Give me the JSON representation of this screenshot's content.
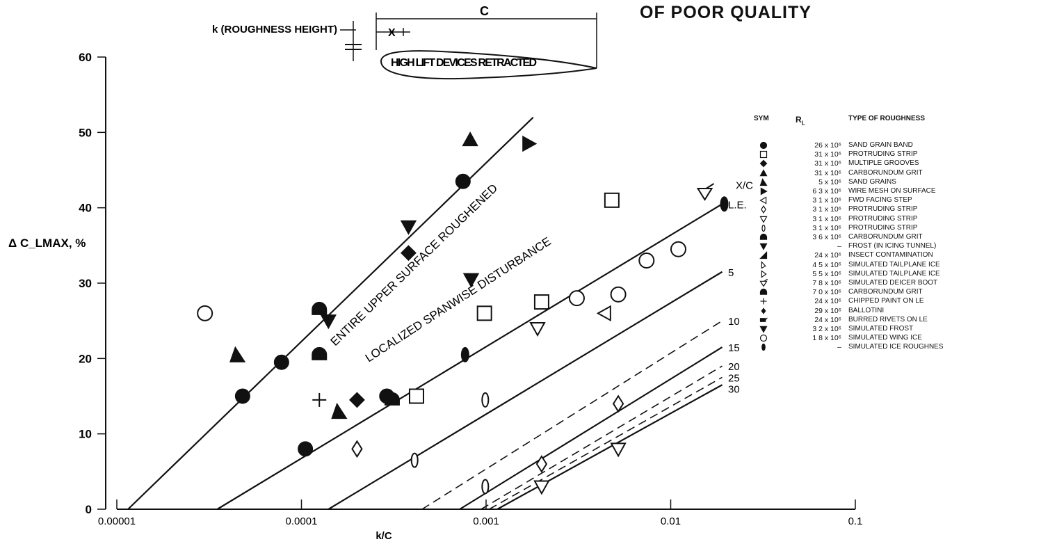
{
  "page_title": "OF POOR QUALITY",
  "diagram": {
    "roughness_label": "k (ROUGHNESS HEIGHT)",
    "chord_label": "C",
    "x_label": "X",
    "airfoil_label": "HIGH LIFT DEVICES RETRACTED"
  },
  "chart_data": {
    "type": "line",
    "title": "",
    "xlabel": "k/C",
    "ylabel": "Δ C_LMAX, %",
    "xscale": "log",
    "xlim": [
      1e-05,
      0.1
    ],
    "ylim": [
      0,
      60
    ],
    "x_ticks": [
      "0.00001",
      "0.0001",
      "0.001",
      "0.01",
      "0.1"
    ],
    "y_ticks": [
      "0",
      "10",
      "20",
      "30",
      "40",
      "50",
      "60"
    ],
    "grid": false,
    "region_labels": [
      "ENTIRE UPPER SURFACE ROUGHENED",
      "LOCALIZED SPANWISE DISTURBANCE"
    ],
    "line_labels_header": "X/C",
    "lines": [
      {
        "label": "",
        "style": "solid",
        "x": [
          1.15e-05,
          0.0018
        ],
        "y": [
          0,
          52
        ]
      },
      {
        "label": "L.E.",
        "style": "solid",
        "x": [
          3.5e-05,
          0.019
        ],
        "y": [
          0,
          40.5
        ]
      },
      {
        "label": "5",
        "style": "solid",
        "x": [
          0.00014,
          0.019
        ],
        "y": [
          0,
          31.5
        ]
      },
      {
        "label": "10",
        "style": "dashed",
        "x": [
          0.00045,
          0.019
        ],
        "y": [
          0,
          25
        ]
      },
      {
        "label": "15",
        "style": "solid",
        "x": [
          0.00072,
          0.019
        ],
        "y": [
          0,
          21.5
        ]
      },
      {
        "label": "20",
        "style": "dashed",
        "x": [
          0.00094,
          0.019
        ],
        "y": [
          0,
          19
        ]
      },
      {
        "label": "25",
        "style": "dashed",
        "x": [
          0.00104,
          0.019
        ],
        "y": [
          0,
          17.5
        ]
      },
      {
        "label": "30",
        "style": "solid",
        "x": [
          0.00115,
          0.019
        ],
        "y": [
          0,
          16.5
        ]
      }
    ],
    "points": [
      {
        "x": 4.8e-05,
        "y": 15,
        "sym": "circle-filled"
      },
      {
        "x": 7.8e-05,
        "y": 19.5,
        "sym": "circle-filled"
      },
      {
        "x": 0.000105,
        "y": 8,
        "sym": "circle-filled"
      },
      {
        "x": 0.00029,
        "y": 15,
        "sym": "circle-filled"
      },
      {
        "x": 0.00075,
        "y": 43.5,
        "sym": "circle-filled"
      },
      {
        "x": 0.00042,
        "y": 15,
        "sym": "square-open"
      },
      {
        "x": 0.00098,
        "y": 26,
        "sym": "square-open"
      },
      {
        "x": 0.002,
        "y": 27.5,
        "sym": "square-open"
      },
      {
        "x": 0.0048,
        "y": 41,
        "sym": "square-open"
      },
      {
        "x": 0.0002,
        "y": 14.5,
        "sym": "diamond-filled"
      },
      {
        "x": 0.00038,
        "y": 34,
        "sym": "diamond-filled"
      },
      {
        "x": 0.00082,
        "y": 49,
        "sym": "triangle-filled"
      },
      {
        "x": 0.00016,
        "y": 13,
        "sym": "sand-grain"
      },
      {
        "x": 4.5e-05,
        "y": 20.5,
        "sym": "sand-grain"
      },
      {
        "x": 0.0017,
        "y": 48.5,
        "sym": "triangle-right-filled"
      },
      {
        "x": 0.0044,
        "y": 26,
        "sym": "triangle-left-open"
      },
      {
        "x": 0.0002,
        "y": 8,
        "sym": "diamond-open"
      },
      {
        "x": 0.0052,
        "y": 14,
        "sym": "diamond-open"
      },
      {
        "x": 0.002,
        "y": 6,
        "sym": "diamond-open"
      },
      {
        "x": 0.0019,
        "y": 24,
        "sym": "triangle-down-open"
      },
      {
        "x": 0.0052,
        "y": 8,
        "sym": "triangle-down-open"
      },
      {
        "x": 0.002,
        "y": 3,
        "sym": "triangle-down-open"
      },
      {
        "x": 0.00099,
        "y": 14.5,
        "sym": "ellipse-open"
      },
      {
        "x": 0.00041,
        "y": 6.5,
        "sym": "ellipse-open"
      },
      {
        "x": 0.00099,
        "y": 3,
        "sym": "ellipse-open"
      },
      {
        "x": 0.000125,
        "y": 20.5,
        "sym": "carb-grit"
      },
      {
        "x": 0.00031,
        "y": 14.5,
        "sym": "carb-grit"
      },
      {
        "x": 0.000125,
        "y": 26.5,
        "sym": "carb-grit"
      },
      {
        "x": 0.00038,
        "y": 37.5,
        "sym": "triangle-down-filled"
      },
      {
        "x": 0.00014,
        "y": 25,
        "sym": "triangle-down-filled"
      },
      {
        "x": 0.00083,
        "y": 30.5,
        "sym": "triangle-down-filled"
      },
      {
        "x": 0.000125,
        "y": 14.5,
        "sym": "cross"
      },
      {
        "x": 3e-05,
        "y": 26,
        "sym": "circle-open-large"
      },
      {
        "x": 0.0031,
        "y": 28,
        "sym": "circle-open-large"
      },
      {
        "x": 0.0052,
        "y": 28.5,
        "sym": "circle-open-large"
      },
      {
        "x": 0.0074,
        "y": 33,
        "sym": "circle-open-large"
      },
      {
        "x": 0.011,
        "y": 34.5,
        "sym": "circle-open-large"
      },
      {
        "x": 0.0153,
        "y": 42,
        "sym": "deicer"
      },
      {
        "x": 0.0195,
        "y": 40.5,
        "sym": "ellipse-filled"
      },
      {
        "x": 0.00077,
        "y": 20.5,
        "sym": "ellipse-filled"
      }
    ]
  },
  "legend": {
    "headers": {
      "sym": "SYM",
      "rl": "R",
      "rl_sub": "L",
      "type": "TYPE OF ROUGHNESS"
    },
    "rows": [
      {
        "sym": "circle-filled",
        "rl": "26 x 10⁶",
        "type": "SAND GRAIN BAND"
      },
      {
        "sym": "square-open",
        "rl": "31 x 10⁶",
        "type": "PROTRUDING STRIP"
      },
      {
        "sym": "diamond-filled",
        "rl": "31 x 10⁶",
        "type": "MULTIPLE GROOVES"
      },
      {
        "sym": "triangle-filled",
        "rl": "31 x 10⁶",
        "type": "CARBORUNDUM GRIT"
      },
      {
        "sym": "sand-grain",
        "rl": "5 x 10⁶",
        "type": "SAND GRAINS"
      },
      {
        "sym": "triangle-right-filled",
        "rl": "6 3 x 10⁶",
        "type": "WIRE MESH ON SURFACE"
      },
      {
        "sym": "triangle-left-open",
        "rl": "3 1 x 10⁶",
        "type": "FWD FACING STEP"
      },
      {
        "sym": "diamond-open",
        "rl": "3 1 x 10⁶",
        "type": "PROTRUDING STRIP"
      },
      {
        "sym": "triangle-down-open",
        "rl": "3 1 x 10⁶",
        "type": "PROTRUDING STRIP"
      },
      {
        "sym": "ellipse-open",
        "rl": "3 1 x 10⁶",
        "type": "PROTRUDING STRIP"
      },
      {
        "sym": "carb-grit",
        "rl": "3 6 x 10⁶",
        "type": "CARBORUNDUM GRIT"
      },
      {
        "sym": "triangle-down-filled",
        "rl": "–",
        "type": "FROST (IN ICING TUNNEL)"
      },
      {
        "sym": "insect",
        "rl": "24 x 10⁶",
        "type": "INSECT CONTAMINATION"
      },
      {
        "sym": "tailplane-a",
        "rl": "4 5 x 10⁶",
        "type": "SIMULATED TAILPLANE ICE"
      },
      {
        "sym": "tailplane-b",
        "rl": "5 5 x 10⁶",
        "type": "SIMULATED TAILPLANE ICE"
      },
      {
        "sym": "deicer",
        "rl": "7 8 x 10⁶",
        "type": "SIMULATED DEICER BOOT"
      },
      {
        "sym": "carb-grit",
        "rl": "7 0 x 10⁶",
        "type": "CARBORUNDUM GRIT"
      },
      {
        "sym": "cross",
        "rl": "24 x 10⁶",
        "type": "CHIPPED PAINT ON LE"
      },
      {
        "sym": "diamond-small",
        "rl": "29 x 10⁶",
        "type": "BALLOTINI"
      },
      {
        "sym": "rivets",
        "rl": "24 x 10⁶",
        "type": "BURRED RIVETS ON LE"
      },
      {
        "sym": "triangle-down-filled",
        "rl": "3 2 x 10⁶",
        "type": "SIMULATED FROST"
      },
      {
        "sym": "circle-open",
        "rl": "1 8 x 10⁶",
        "type": "SIMULATED WING ICE"
      },
      {
        "sym": "ellipse-filled",
        "rl": "–",
        "type": "SIMULATED ICE ROUGHNES"
      }
    ]
  }
}
